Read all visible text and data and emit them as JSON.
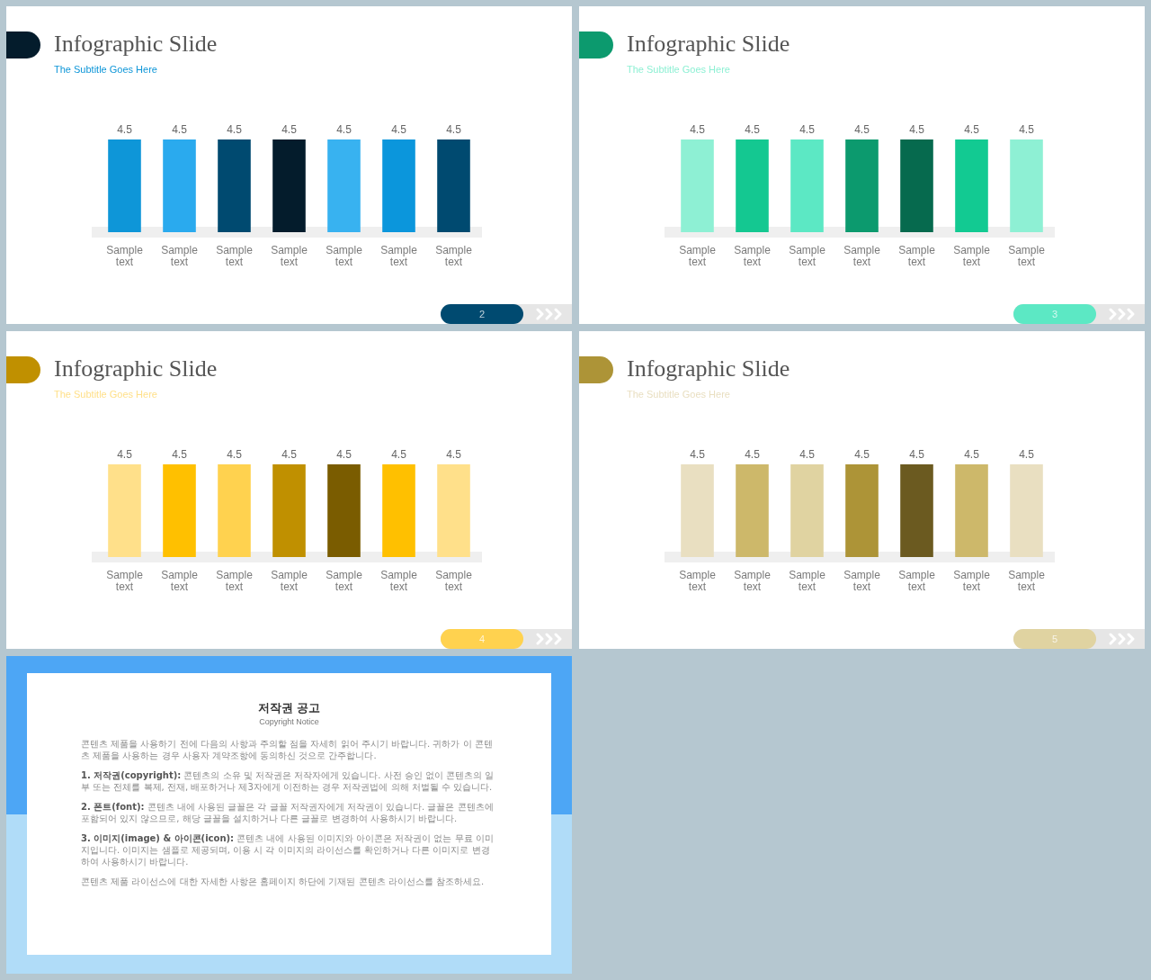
{
  "chart_data": [
    {
      "type": "bar",
      "title": "Infographic Slide",
      "subtitle": "The Subtitle Goes Here",
      "categories": [
        "Sample text",
        "Sample text",
        "Sample text",
        "Sample text",
        "Sample text",
        "Sample text",
        "Sample text"
      ],
      "values": [
        4.5,
        4.5,
        4.5,
        4.5,
        4.5,
        4.5,
        4.5
      ],
      "data_labels": true,
      "tick_labels": "x",
      "colors": [
        "#0e96d8",
        "#2aaaee",
        "#004a70",
        "#041c2c",
        "#38b2f0",
        "#0b96dc",
        "#004a70"
      ],
      "annotations": [
        "2"
      ]
    },
    {
      "type": "bar",
      "title": "Infographic Slide",
      "subtitle": "The Subtitle Goes Here",
      "categories": [
        "Sample text",
        "Sample text",
        "Sample text",
        "Sample text",
        "Sample text",
        "Sample text",
        "Sample text"
      ],
      "values": [
        4.5,
        4.5,
        4.5,
        4.5,
        4.5,
        4.5,
        4.5
      ],
      "data_labels": true,
      "tick_labels": "x",
      "colors": [
        "#8ef0d4",
        "#14c891",
        "#5ce8c4",
        "#0c9a6e",
        "#066a4e",
        "#12ca92",
        "#8ef0d4"
      ],
      "annotations": [
        "3"
      ]
    },
    {
      "type": "bar",
      "title": "Infographic Slide",
      "subtitle": "The Subtitle Goes Here",
      "categories": [
        "Sample text",
        "Sample text",
        "Sample text",
        "Sample text",
        "Sample text",
        "Sample text",
        "Sample text"
      ],
      "values": [
        4.5,
        4.5,
        4.5,
        4.5,
        4.5,
        4.5,
        4.5
      ],
      "data_labels": true,
      "tick_labels": "x",
      "colors": [
        "#ffe08a",
        "#ffc000",
        "#ffd24f",
        "#c09000",
        "#7a5c00",
        "#ffc000",
        "#ffe08a"
      ],
      "annotations": [
        "4"
      ]
    },
    {
      "type": "bar",
      "title": "Infographic Slide",
      "subtitle": "The Subtitle Goes Here",
      "categories": [
        "Sample text",
        "Sample text",
        "Sample text",
        "Sample text",
        "Sample text",
        "Sample text",
        "Sample text"
      ],
      "values": [
        4.5,
        4.5,
        4.5,
        4.5,
        4.5,
        4.5,
        4.5
      ],
      "data_labels": true,
      "tick_labels": "x",
      "colors": [
        "#e9dfc1",
        "#cdb86a",
        "#e0d3a1",
        "#ad9437",
        "#6b5a20",
        "#cdb86a",
        "#e9dfc1"
      ],
      "annotations": [
        "5"
      ]
    },
    {
      "type": "other",
      "title": "저작권 공고",
      "subtitle": "Copyright Notice",
      "annotations": [
        "콘텐츠 제품을 사용하기 전에 다음의 사항과 주의할 점을 자세히 읽어 주시기 바랍니다. 귀하가 이 콘텐츠 제품을 사용하는 경우 사용자 계약조항에 동의하신 것으로 간주합니다.",
        "1. 저작권(copyright): 콘텐츠의 소유 및 저작권은 저작자에게 있습니다. 사전 승인 없이 콘텐츠의 일부 또는 전체를 복제, 전재, 배포하거나 제3자에게 이전하는 경우 저작권법에 의해 처벌될 수 있습니다.",
        "2. 폰트(font): 콘텐츠 내에 사용된 글꼴은 각 글꼴 저작권자에게 저작권이 있습니다. 글꼴은 콘텐츠에 포함되어 있지 않으므로, 해당 글꼴을 설치하거나 다른 글꼴로 변경하여 사용하시기 바랍니다.",
        "3. 이미지(image) & 아이콘(icon): 콘텐츠 내에 사용된 이미지와 아이콘은 저작권이 없는 무료 이미지입니다. 이미지는 샘플로 제공되며, 이용 시 각 이미지의 라이선스를 확인하거나 다른 이미지로 변경하여 사용하시기 바랍니다.",
        "콘텐츠 제품 라이선스에 대한 자세한 사항은 홈페이지 하단에 기재된 콘텐츠 라이선스를 참조하세요."
      ]
    }
  ]
}
